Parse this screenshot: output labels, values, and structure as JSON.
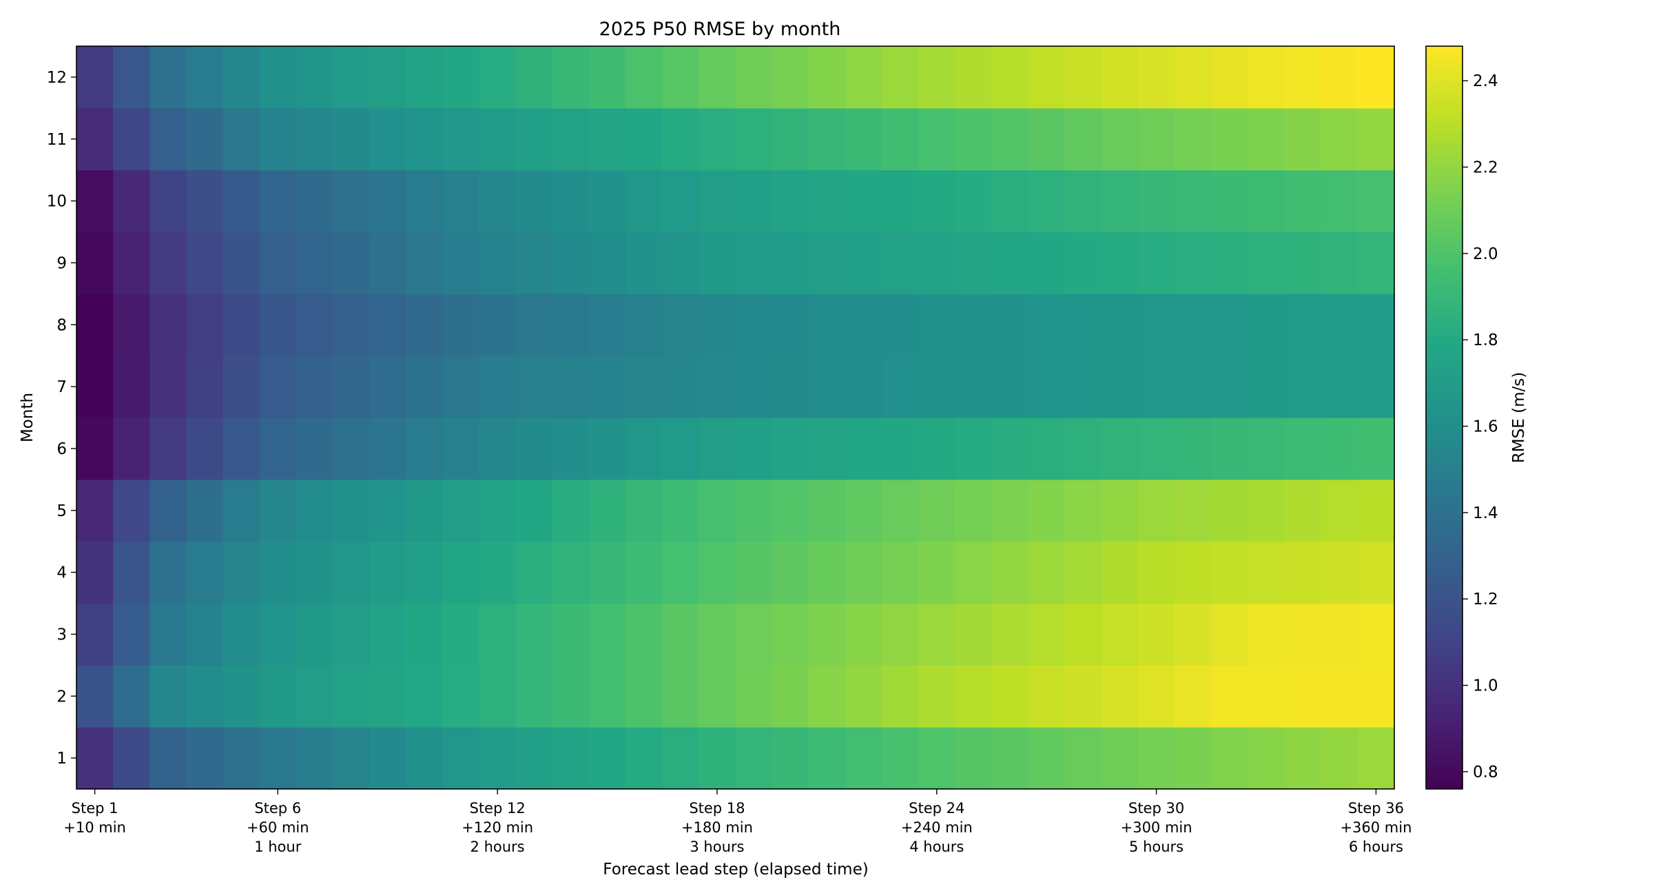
{
  "chart_data": {
    "type": "heatmap",
    "title": "2025 P50 RMSE by month",
    "xlabel": "Forecast lead step (elapsed time)",
    "ylabel": "Month",
    "colorbar_label": "RMSE (m/s)",
    "colormap": "viridis",
    "vlim": [
      0.76,
      2.48
    ],
    "colorbar_ticks": [
      "0.8",
      "1.0",
      "1.2",
      "1.4",
      "1.6",
      "1.8",
      "2.0",
      "2.2",
      "2.4"
    ],
    "x_steps": 36,
    "x_tick_labels": [
      {
        "step": 1,
        "lines": [
          "Step 1",
          "+10 min"
        ]
      },
      {
        "step": 6,
        "lines": [
          "Step 6",
          "+60 min",
          "1 hour"
        ]
      },
      {
        "step": 12,
        "lines": [
          "Step 12",
          "+120 min",
          "2 hours"
        ]
      },
      {
        "step": 18,
        "lines": [
          "Step 18",
          "+180 min",
          "3 hours"
        ]
      },
      {
        "step": 24,
        "lines": [
          "Step 24",
          "+240 min",
          "4 hours"
        ]
      },
      {
        "step": 30,
        "lines": [
          "Step 30",
          "+300 min",
          "5 hours"
        ]
      },
      {
        "step": 36,
        "lines": [
          "Step 36",
          "+360 min",
          "6 hours"
        ]
      }
    ],
    "months": [
      1,
      2,
      3,
      4,
      5,
      6,
      7,
      8,
      9,
      10,
      11,
      12
    ],
    "row_profiles": {
      "1": [
        [
          1,
          1.0
        ],
        [
          3,
          1.3
        ],
        [
          6,
          1.45
        ],
        [
          12,
          1.7
        ],
        [
          18,
          1.86
        ],
        [
          24,
          2.0
        ],
        [
          30,
          2.12
        ],
        [
          36,
          2.22
        ]
      ],
      "2": [
        [
          1,
          1.2
        ],
        [
          3,
          1.55
        ],
        [
          6,
          1.68
        ],
        [
          12,
          1.85
        ],
        [
          18,
          2.07
        ],
        [
          24,
          2.27
        ],
        [
          30,
          2.4
        ],
        [
          32,
          2.45
        ],
        [
          36,
          2.46
        ]
      ],
      "3": [
        [
          1,
          1.08
        ],
        [
          3,
          1.45
        ],
        [
          6,
          1.65
        ],
        [
          12,
          1.85
        ],
        [
          18,
          2.07
        ],
        [
          24,
          2.22
        ],
        [
          30,
          2.35
        ],
        [
          33,
          2.44
        ],
        [
          36,
          2.45
        ]
      ],
      "4": [
        [
          1,
          1.02
        ],
        [
          3,
          1.4
        ],
        [
          6,
          1.6
        ],
        [
          12,
          1.8
        ],
        [
          18,
          2.0
        ],
        [
          24,
          2.15
        ],
        [
          30,
          2.3
        ],
        [
          36,
          2.36
        ]
      ],
      "5": [
        [
          1,
          0.96
        ],
        [
          3,
          1.3
        ],
        [
          6,
          1.55
        ],
        [
          12,
          1.75
        ],
        [
          18,
          1.97
        ],
        [
          24,
          2.1
        ],
        [
          30,
          2.22
        ],
        [
          36,
          2.3
        ]
      ],
      "6": [
        [
          1,
          0.8
        ],
        [
          3,
          1.05
        ],
        [
          6,
          1.32
        ],
        [
          12,
          1.55
        ],
        [
          18,
          1.72
        ],
        [
          24,
          1.8
        ],
        [
          30,
          1.88
        ],
        [
          36,
          1.95
        ]
      ],
      "7": [
        [
          1,
          0.78
        ],
        [
          3,
          1.0
        ],
        [
          6,
          1.25
        ],
        [
          12,
          1.48
        ],
        [
          18,
          1.56
        ],
        [
          24,
          1.62
        ],
        [
          30,
          1.66
        ],
        [
          36,
          1.7
        ]
      ],
      "8": [
        [
          1,
          0.77
        ],
        [
          3,
          1.0
        ],
        [
          6,
          1.22
        ],
        [
          12,
          1.42
        ],
        [
          18,
          1.55
        ],
        [
          24,
          1.62
        ],
        [
          30,
          1.66
        ],
        [
          36,
          1.7
        ]
      ],
      "9": [
        [
          1,
          0.8
        ],
        [
          3,
          1.05
        ],
        [
          6,
          1.28
        ],
        [
          12,
          1.52
        ],
        [
          18,
          1.68
        ],
        [
          24,
          1.75
        ],
        [
          30,
          1.82
        ],
        [
          36,
          1.88
        ]
      ],
      "10": [
        [
          1,
          0.82
        ],
        [
          3,
          1.1
        ],
        [
          6,
          1.32
        ],
        [
          12,
          1.55
        ],
        [
          18,
          1.72
        ],
        [
          24,
          1.8
        ],
        [
          30,
          1.9
        ],
        [
          36,
          1.97
        ]
      ],
      "11": [
        [
          1,
          0.97
        ],
        [
          3,
          1.28
        ],
        [
          6,
          1.52
        ],
        [
          12,
          1.7
        ],
        [
          18,
          1.83
        ],
        [
          24,
          1.97
        ],
        [
          30,
          2.1
        ],
        [
          36,
          2.2
        ]
      ],
      "12": [
        [
          1,
          1.05
        ],
        [
          3,
          1.4
        ],
        [
          6,
          1.62
        ],
        [
          12,
          1.82
        ],
        [
          18,
          2.07
        ],
        [
          24,
          2.25
        ],
        [
          30,
          2.38
        ],
        [
          33,
          2.44
        ],
        [
          36,
          2.48
        ]
      ]
    }
  }
}
